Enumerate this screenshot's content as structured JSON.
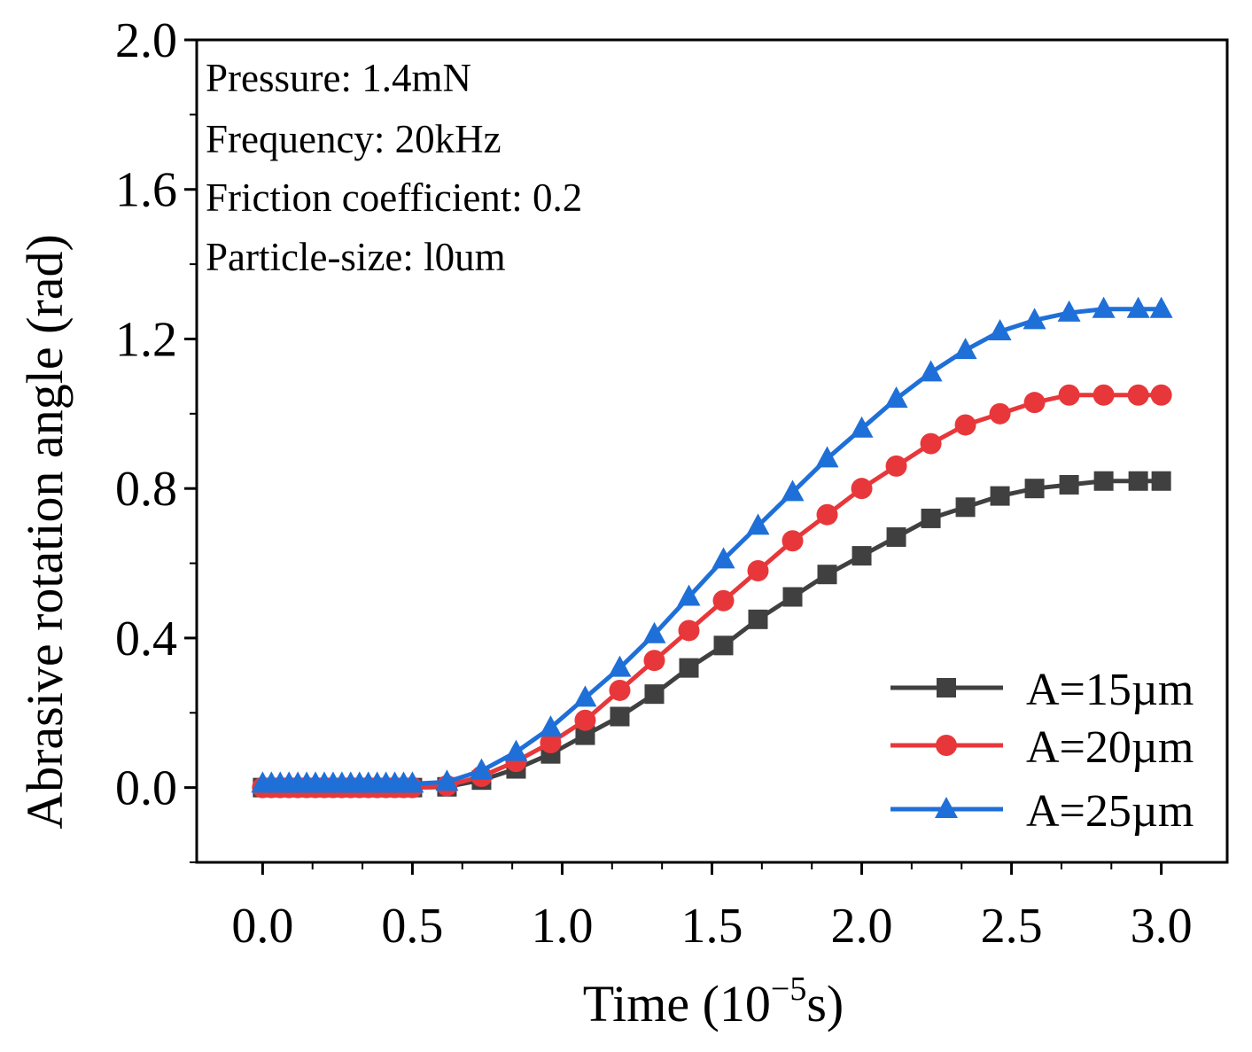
{
  "chart_data": {
    "type": "line",
    "xlabel": "Time (10",
    "xlabel_exp": "−5",
    "xlabel_unit": "s)",
    "ylabel": "Abrasive rotation angle (rad)",
    "xlim": [
      -0.22,
      3.22
    ],
    "ylim": [
      -0.2,
      2.0
    ],
    "xticks": [
      0.0,
      0.5,
      1.0,
      1.5,
      2.0,
      2.5,
      3.0
    ],
    "xtick_labels": [
      "0.0",
      "0.5",
      "1.0",
      "1.5",
      "2.0",
      "2.5",
      "3.0"
    ],
    "yticks": [
      0.0,
      0.4,
      0.8,
      1.2,
      1.6,
      2.0
    ],
    "ytick_labels": [
      "0.0",
      "0.4",
      "0.8",
      "1.2",
      "1.6",
      "2.0"
    ],
    "annotations": [
      "Pressure: 1.4mN",
      "Frequency: 20kHz",
      "Friction coefficient: 0.2",
      "Particle-size: l0um"
    ],
    "legend_position": "bottom-right",
    "x": [
      0.0,
      0.0294,
      0.0588,
      0.0882,
      0.1176,
      0.1471,
      0.1765,
      0.2059,
      0.2353,
      0.2647,
      0.2941,
      0.3235,
      0.3529,
      0.3824,
      0.4118,
      0.4412,
      0.4706,
      0.5,
      0.6154,
      0.7308,
      0.8462,
      0.9615,
      1.0769,
      1.1923,
      1.3077,
      1.4231,
      1.5385,
      1.6538,
      1.7692,
      1.8846,
      2.0,
      2.1154,
      2.2308,
      2.3462,
      2.4615,
      2.5769,
      2.6923,
      2.8077,
      2.9231,
      3.0
    ],
    "series": [
      {
        "name": "A=15µm",
        "color": "#404040",
        "marker": "square",
        "values": [
          0,
          0,
          0,
          0,
          0,
          0,
          0,
          0,
          0,
          0,
          0,
          0,
          0,
          0,
          0,
          0,
          0,
          0,
          0.002,
          0.02,
          0.05,
          0.09,
          0.14,
          0.19,
          0.25,
          0.32,
          0.38,
          0.45,
          0.51,
          0.57,
          0.62,
          0.67,
          0.72,
          0.75,
          0.78,
          0.8,
          0.81,
          0.82,
          0.82,
          0.82
        ]
      },
      {
        "name": "A=20µm",
        "color": "#e8373a",
        "marker": "circle",
        "values": [
          0,
          0,
          0,
          0,
          0,
          0,
          0,
          0,
          0,
          0,
          0,
          0,
          0,
          0,
          0,
          0,
          0,
          0,
          0.005,
          0.03,
          0.07,
          0.12,
          0.18,
          0.26,
          0.34,
          0.42,
          0.5,
          0.58,
          0.66,
          0.73,
          0.8,
          0.86,
          0.92,
          0.97,
          1.0,
          1.03,
          1.05,
          1.05,
          1.05,
          1.05
        ]
      },
      {
        "name": "A=25µm",
        "color": "#1f6fd8",
        "marker": "triangle",
        "values": [
          0.01,
          0.01,
          0.01,
          0.01,
          0.01,
          0.01,
          0.01,
          0.01,
          0.01,
          0.01,
          0.01,
          0.01,
          0.01,
          0.01,
          0.01,
          0.01,
          0.01,
          0.01,
          0.015,
          0.045,
          0.095,
          0.16,
          0.24,
          0.32,
          0.41,
          0.51,
          0.61,
          0.7,
          0.79,
          0.88,
          0.96,
          1.04,
          1.11,
          1.17,
          1.22,
          1.25,
          1.27,
          1.28,
          1.28,
          1.28
        ]
      }
    ]
  }
}
